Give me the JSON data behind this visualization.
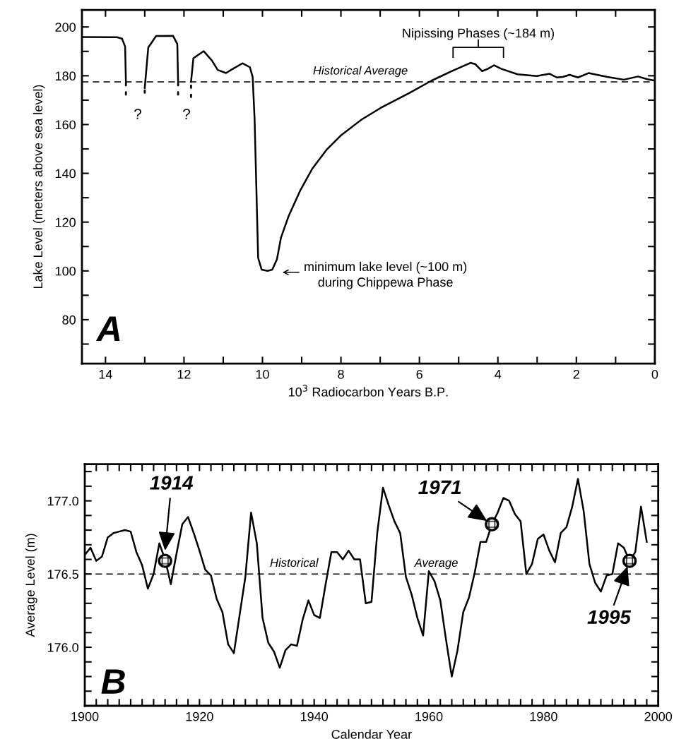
{
  "chart_data": [
    {
      "type": "line",
      "xlabel": "10$^{3}$ Radiocarbon Years B.P.",
      "ylabel": "Lake Level (meters above sea level)",
      "xlim": [
        14.6,
        0
      ],
      "ylim": [
        62,
        207
      ],
      "xticks": [
        14,
        {
          "value": 13,
          "label": null
        },
        12,
        {
          "value": 11,
          "label": null
        },
        10,
        {
          "value": 9,
          "label": null
        },
        8,
        {
          "value": 7,
          "label": null
        },
        6,
        {
          "value": 5,
          "label": null
        },
        4,
        {
          "value": 3,
          "label": null
        },
        2,
        {
          "value": 1,
          "label": null
        },
        0
      ],
      "yticks": [
        {
          "value": 70,
          "label": null
        },
        80,
        {
          "value": 90,
          "label": null
        },
        100,
        {
          "value": 110,
          "label": null
        },
        120,
        {
          "value": 130,
          "label": null
        },
        140,
        {
          "value": 150,
          "label": null
        },
        160,
        {
          "value": 170,
          "label": null
        },
        180,
        {
          "value": 190,
          "label": null
        },
        200
      ],
      "series": [
        {
          "color": "#000000",
          "x": [
            14.6,
            13.7,
            13.58,
            13.5,
            13.48,
            13.3,
            13.0,
            12.91,
            12.71,
            12.28,
            12.17,
            12.15,
            12.0,
            11.82,
            11.76,
            11.5,
            11.29,
            11.14,
            10.93,
            10.75,
            10.51,
            10.32,
            10.25,
            10.2,
            10.11,
            10.02,
            9.87,
            9.75,
            9.63,
            9.53,
            9.33,
            9.03,
            8.73,
            8.37,
            8.01,
            7.47,
            6.99,
            6.26,
            5.69,
            5.18,
            4.7,
            4.58,
            4.4,
            4.25,
            4.1,
            3.92,
            3.5,
            3.01,
            2.68,
            2.5,
            2.35,
            2.17,
            1.96,
            1.69,
            1.21,
            0.79,
            0.43,
            0.19,
            0
          ],
          "values": [
            195.9,
            195.8,
            195.2,
            192,
            177.5,
            null,
            175,
            191.6,
            196.3,
            196.4,
            193,
            177.5,
            null,
            177.5,
            187.2,
            190.1,
            186.3,
            182.4,
            181.1,
            182.9,
            185.1,
            183.5,
            179.5,
            162.1,
            105.3,
            100.5,
            100,
            100.5,
            104.8,
            113.5,
            122.6,
            133.2,
            141.9,
            149.6,
            155.4,
            162.1,
            166.8,
            172.9,
            178,
            181.9,
            185.3,
            184.8,
            181.9,
            182.9,
            184.3,
            182.9,
            180.6,
            179.9,
            180.8,
            179.3,
            179.5,
            180.4,
            179.3,
            181.1,
            179.5,
            178.4,
            179.7,
            178.6,
            178
          ]
        },
        {
          "color": "#000000",
          "line_style": "dotted",
          "x": [
            13.48,
            13.48,
            13.4,
            13.0,
            13.0,
            12.9,
            12.15,
            12.15,
            12.0,
            11.82,
            11.82
          ],
          "values": [
            177,
            170,
            null,
            174,
            171,
            null,
            177,
            170,
            null,
            176,
            171
          ]
        }
      ],
      "ref_lines": [
        {
          "axis": "y",
          "value": 177.5,
          "label": "Historical Average",
          "line_style": "dashed",
          "color": "#000000"
        }
      ],
      "annotations": [
        "A",
        "?",
        "?",
        {
          "text": "Nipissing Phases (~184 m)",
          "x": 4.5,
          "y": 185
        },
        "minimum lake level (~100 m)\nduring Chippewa Phase"
      ]
    },
    {
      "type": "line",
      "xlabel": "Calendar Year",
      "ylabel": "Average Level (m)",
      "xlim": [
        1900,
        2000
      ],
      "ylim": [
        175.6,
        177.25
      ],
      "xticks": [
        1900,
        {
          "value": 1902,
          "label": null
        },
        {
          "value": 1904,
          "label": null
        },
        {
          "value": 1906,
          "label": null
        },
        {
          "value": 1908,
          "label": null
        },
        {
          "value": 1910,
          "label": null
        },
        {
          "value": 1912,
          "label": null
        },
        {
          "value": 1914,
          "label": null
        },
        {
          "value": 1916,
          "label": null
        },
        {
          "value": 1918,
          "label": null
        },
        1920,
        {
          "value": 1922,
          "label": null
        },
        {
          "value": 1924,
          "label": null
        },
        {
          "value": 1926,
          "label": null
        },
        {
          "value": 1928,
          "label": null
        },
        {
          "value": 1930,
          "label": null
        },
        {
          "value": 1932,
          "label": null
        },
        {
          "value": 1934,
          "label": null
        },
        {
          "value": 1936,
          "label": null
        },
        {
          "value": 1938,
          "label": null
        },
        1940,
        {
          "value": 1942,
          "label": null
        },
        {
          "value": 1944,
          "label": null
        },
        {
          "value": 1946,
          "label": null
        },
        {
          "value": 1948,
          "label": null
        },
        {
          "value": 1950,
          "label": null
        },
        {
          "value": 1952,
          "label": null
        },
        {
          "value": 1954,
          "label": null
        },
        {
          "value": 1956,
          "label": null
        },
        {
          "value": 1958,
          "label": null
        },
        1960,
        {
          "value": 1962,
          "label": null
        },
        {
          "value": 1964,
          "label": null
        },
        {
          "value": 1966,
          "label": null
        },
        {
          "value": 1968,
          "label": null
        },
        {
          "value": 1970,
          "label": null
        },
        {
          "value": 1972,
          "label": null
        },
        {
          "value": 1974,
          "label": null
        },
        {
          "value": 1976,
          "label": null
        },
        {
          "value": 1978,
          "label": null
        },
        1980,
        {
          "value": 1982,
          "label": null
        },
        {
          "value": 1984,
          "label": null
        },
        {
          "value": 1986,
          "label": null
        },
        {
          "value": 1988,
          "label": null
        },
        {
          "value": 1990,
          "label": null
        },
        {
          "value": 1992,
          "label": null
        },
        {
          "value": 1994,
          "label": null
        },
        {
          "value": 1996,
          "label": null
        },
        {
          "value": 1998,
          "label": null
        },
        2000
      ],
      "yticks": [
        {
          "value": 175.7,
          "label": null
        },
        {
          "value": 175.8,
          "label": null
        },
        {
          "value": 175.9,
          "label": null
        },
        {
          "value": 176.0,
          "label": "176.0"
        },
        {
          "value": 176.1,
          "label": null
        },
        {
          "value": 176.2,
          "label": null
        },
        {
          "value": 176.3,
          "label": null
        },
        {
          "value": 176.4,
          "label": null
        },
        {
          "value": 176.5,
          "label": "176.5"
        },
        {
          "value": 176.6,
          "label": null
        },
        {
          "value": 176.7,
          "label": null
        },
        {
          "value": 176.8,
          "label": null
        },
        {
          "value": 176.9,
          "label": null
        },
        {
          "value": 177.0,
          "label": "177.0"
        },
        {
          "value": 177.1,
          "label": null
        },
        {
          "value": 177.2,
          "label": null
        }
      ],
      "series": [
        {
          "color": "#000000",
          "x": [
            1900,
            1901,
            1902,
            1903,
            1904,
            1905,
            1906,
            1907,
            1908,
            1909,
            1910,
            1911,
            1912,
            1913,
            1914,
            1915,
            1916,
            1917,
            1918,
            1919,
            1920,
            1921,
            1922,
            1923,
            1924,
            1925,
            1926,
            1927,
            1928,
            1929,
            1930,
            1931,
            1932,
            1933,
            1934,
            1935,
            1936,
            1937,
            1938,
            1939,
            1940,
            1941,
            1942,
            1943,
            1944,
            1945,
            1946,
            1947,
            1948,
            1949,
            1950,
            1951,
            1952,
            1953,
            1954,
            1955,
            1956,
            1957,
            1958,
            1959,
            1960,
            1961,
            1962,
            1963,
            1964,
            1965,
            1966,
            1967,
            1968,
            1969,
            1970,
            1971,
            1972,
            1973,
            1974,
            1975,
            1976,
            1977,
            1978,
            1979,
            1980,
            1981,
            1982,
            1983,
            1984,
            1985,
            1986,
            1987,
            1988,
            1989,
            1990,
            1991,
            1992,
            1993,
            1994,
            1995,
            1996,
            1997,
            1998
          ],
          "values": [
            176.63,
            176.68,
            176.59,
            176.62,
            176.75,
            176.78,
            176.79,
            176.8,
            176.79,
            176.65,
            176.56,
            176.4,
            176.5,
            176.71,
            176.6,
            176.43,
            176.64,
            176.84,
            176.89,
            176.78,
            176.66,
            176.53,
            176.49,
            176.33,
            176.24,
            176.02,
            175.96,
            176.22,
            176.48,
            176.92,
            176.71,
            176.2,
            176.03,
            175.97,
            175.86,
            175.98,
            176.02,
            176.01,
            176.19,
            176.32,
            176.22,
            176.2,
            176.43,
            176.65,
            176.65,
            176.6,
            176.66,
            176.6,
            176.6,
            176.3,
            176.31,
            176.78,
            177.09,
            176.97,
            176.86,
            176.78,
            176.48,
            176.36,
            176.2,
            176.08,
            176.52,
            176.45,
            176.32,
            176.05,
            175.8,
            175.98,
            176.24,
            176.34,
            176.51,
            176.72,
            176.72,
            176.84,
            176.92,
            177.02,
            177.0,
            176.91,
            176.86,
            176.5,
            176.57,
            176.74,
            176.77,
            176.66,
            176.58,
            176.78,
            176.82,
            176.96,
            177.15,
            176.93,
            176.57,
            176.44,
            176.38,
            176.49,
            176.5,
            176.71,
            176.68,
            176.59,
            176.65,
            176.96,
            176.72
          ]
        },
        {
          "type": "scatter",
          "color": "#000000",
          "marker": "circle",
          "x": [
            1914,
            1971,
            1995
          ],
          "values": [
            176.59,
            176.84,
            176.59
          ]
        }
      ],
      "ref_lines": [
        {
          "axis": "y",
          "value": 176.5,
          "line_style": "dashed",
          "color": "#000000"
        }
      ],
      "annotations": [
        "B",
        {
          "text": "Historical",
          "x": 1936.5,
          "y": 176.5
        },
        {
          "text": "Average",
          "x": 1961.3,
          "y": 176.5
        },
        {
          "text": "1914",
          "x": 1914,
          "y": 176.66
        },
        {
          "text": "1971",
          "x": 1971,
          "y": 176.84
        },
        {
          "text": "1995",
          "x": 1995,
          "y": 176.59
        }
      ]
    }
  ]
}
